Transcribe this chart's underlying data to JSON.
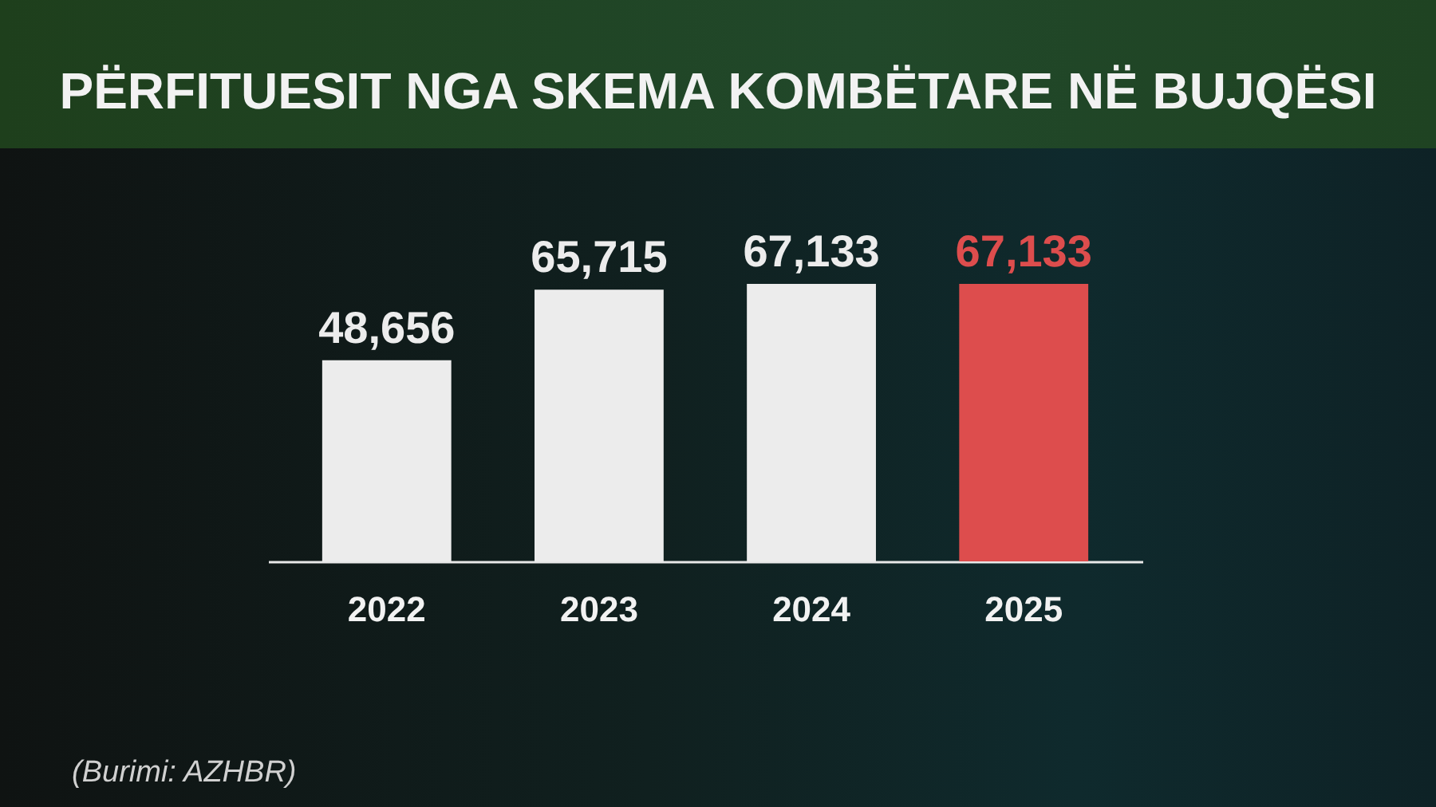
{
  "chart_data": {
    "type": "bar",
    "title": "PËRFITUESIT NGA SKEMA KOMBËTARE NË BUJQËSI",
    "categories": [
      "2022",
      "2023",
      "2024",
      "2025"
    ],
    "values": [
      48656,
      65715,
      67133,
      67133
    ],
    "value_labels": [
      "48,656",
      "65,715",
      "67,133",
      "67,133"
    ],
    "colors": [
      "#ececec",
      "#ececec",
      "#ececec",
      "#dd4d4d"
    ],
    "grid": false,
    "annotations": [
      "(Burimi: AZHBR)"
    ]
  }
}
